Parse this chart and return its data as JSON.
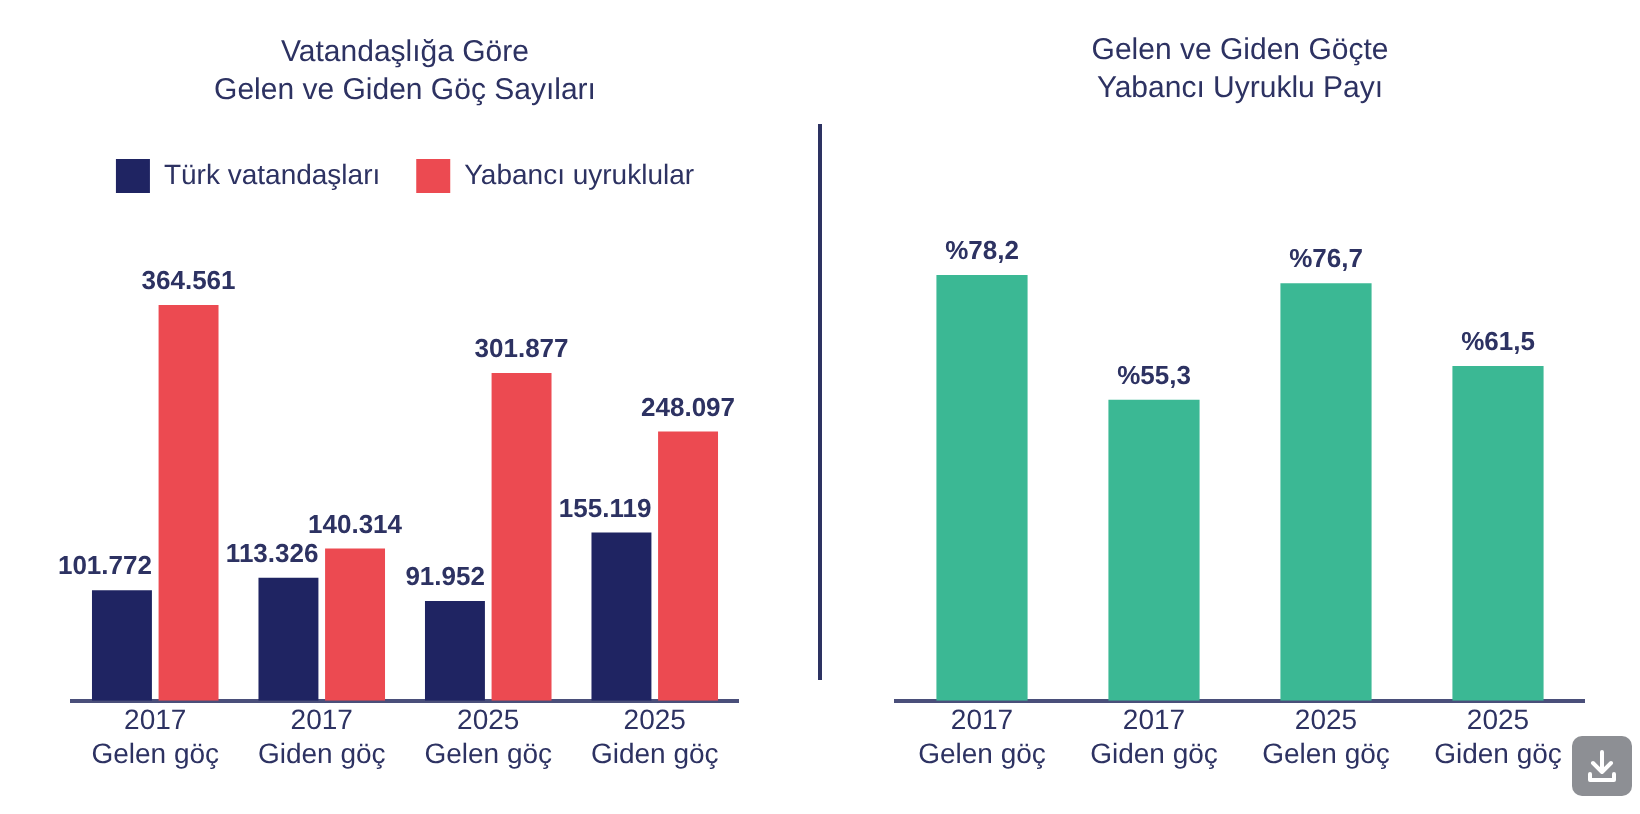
{
  "chart_data": [
    {
      "type": "bar",
      "title": "Vatandaşlığa Göre\nGelen ve Giden Göç Sayıları",
      "categories": [
        "2017\nGelen göç",
        "2017\nGiden göç",
        "2025\nGelen göç",
        "2025\nGiden göç"
      ],
      "series": [
        {
          "name": "Türk vatandaşları",
          "color": "#1f2462",
          "values": [
            101772,
            113326,
            91952,
            155119
          ],
          "value_labels": [
            "101.772",
            "113.326",
            "91.952",
            "155.119"
          ]
        },
        {
          "name": "Yabancı uyruklular",
          "color": "#ec4a51",
          "values": [
            364561,
            140314,
            301877,
            248097
          ],
          "value_labels": [
            "364.561",
            "140.314",
            "301.877",
            "248.097"
          ]
        }
      ],
      "legend": "top",
      "tick_labels": "x"
    },
    {
      "type": "bar",
      "title": "Gelen ve Giden Göçte\nYabancı Uyruklu Payı",
      "categories": [
        "2017\nGelen göç",
        "2017\nGiden göç",
        "2025\nGelen göç",
        "2025\nGiden göç"
      ],
      "color": "#3bb894",
      "values": [
        78.2,
        55.3,
        76.7,
        61.5
      ],
      "value_labels": [
        "%78,2",
        "%55,3",
        "%76,7",
        "%61,5"
      ],
      "tick_labels": "x"
    }
  ]
}
